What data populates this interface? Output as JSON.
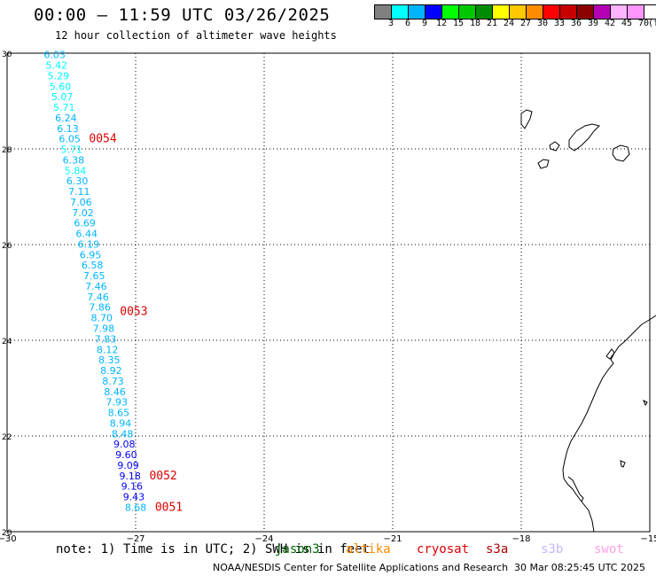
{
  "header": {
    "title": "00:00 – 11:59 UTC 03/26/2025",
    "subtitle": "12 hour collection of altimeter wave heights"
  },
  "colorbar": {
    "unit": "(ft)",
    "colors": [
      "#808080",
      "#00ffff",
      "#00b4ff",
      "#0000ff",
      "#00ff00",
      "#00c800",
      "#008c00",
      "#ffff00",
      "#ffc800",
      "#ff8c00",
      "#ff0000",
      "#c80000",
      "#8c0000",
      "#b400b4",
      "#ffb4ff",
      "#ff96ff",
      "#ffffff",
      "#000000"
    ],
    "labels": [
      "3",
      "6",
      "9",
      "12",
      "15",
      "18",
      "21",
      "24",
      "27",
      "30",
      "33",
      "36",
      "39",
      "42",
      "45",
      "70"
    ]
  },
  "map": {
    "lon_ticks": [
      "−30",
      "−27",
      "−24",
      "−21",
      "−18",
      "−15"
    ],
    "lat_ticks": [
      "30",
      "28",
      "26",
      "24",
      "22",
      "20"
    ],
    "track": [
      {
        "lat": 29.97,
        "value": "6.03"
      },
      {
        "lat": 29.75,
        "value": "5.42"
      },
      {
        "lat": 29.53,
        "value": "5.29"
      },
      {
        "lat": 29.31,
        "value": "5.60"
      },
      {
        "lat": 29.09,
        "value": "5.07"
      },
      {
        "lat": 28.87,
        "value": "5.71"
      },
      {
        "lat": 28.65,
        "value": "6.24"
      },
      {
        "lat": 28.43,
        "value": "6.13"
      },
      {
        "lat": 28.21,
        "value": "6.05"
      },
      {
        "lat": 27.99,
        "value": "5.71"
      },
      {
        "lat": 27.77,
        "value": "6.38"
      },
      {
        "lat": 27.55,
        "value": "5.84"
      },
      {
        "lat": 27.33,
        "value": "6.30"
      },
      {
        "lat": 27.11,
        "value": "7.11"
      },
      {
        "lat": 26.89,
        "value": "7.06"
      },
      {
        "lat": 26.67,
        "value": "7.02"
      },
      {
        "lat": 26.45,
        "value": "6.69"
      },
      {
        "lat": 26.23,
        "value": "6.44"
      },
      {
        "lat": 26.01,
        "value": "6.19"
      },
      {
        "lat": 25.79,
        "value": "6.95"
      },
      {
        "lat": 25.57,
        "value": "6.58"
      },
      {
        "lat": 25.35,
        "value": "7.65"
      },
      {
        "lat": 25.13,
        "value": "7.46"
      },
      {
        "lat": 24.91,
        "value": "7.46"
      },
      {
        "lat": 24.69,
        "value": "7.86"
      },
      {
        "lat": 24.47,
        "value": "8.70"
      },
      {
        "lat": 24.25,
        "value": "7.98"
      },
      {
        "lat": 24.03,
        "value": "7.83"
      },
      {
        "lat": 23.81,
        "value": "8.12"
      },
      {
        "lat": 23.59,
        "value": "8.35"
      },
      {
        "lat": 23.37,
        "value": "8.92"
      },
      {
        "lat": 23.15,
        "value": "8.73"
      },
      {
        "lat": 22.93,
        "value": "8.46"
      },
      {
        "lat": 22.71,
        "value": "7.93"
      },
      {
        "lat": 22.49,
        "value": "8.65"
      },
      {
        "lat": 22.27,
        "value": "8.94"
      },
      {
        "lat": 22.05,
        "value": "8.48"
      },
      {
        "lat": 21.83,
        "value": "9.08"
      },
      {
        "lat": 21.61,
        "value": "9.60"
      },
      {
        "lat": 21.39,
        "value": "9.09"
      },
      {
        "lat": 21.17,
        "value": "9.18"
      },
      {
        "lat": 20.95,
        "value": "9.16"
      },
      {
        "lat": 20.73,
        "value": "9.43"
      },
      {
        "lat": 20.51,
        "value": "8.68"
      }
    ],
    "time_labels": [
      {
        "lat": 28.21,
        "text": "0054"
      },
      {
        "lat": 24.6,
        "text": "0053"
      },
      {
        "lat": 21.17,
        "text": "0052"
      },
      {
        "lat": 20.51,
        "text": "0051"
      }
    ]
  },
  "legend": {
    "note": "note: 1) Time is in UTC; 2) SWH is in feet",
    "satellites": [
      {
        "name": "jason3",
        "color": "#006400"
      },
      {
        "name": "altika",
        "color": "#ff8c00"
      },
      {
        "name": "cryosat",
        "color": "#dd0000"
      },
      {
        "name": "s3a",
        "color": "#aa0000"
      },
      {
        "name": "s3b",
        "color": "#c8b4ff"
      },
      {
        "name": "swot",
        "color": "#ffa0e6"
      }
    ]
  },
  "footer": {
    "credit": "NOAA/NESDIS Center for Satellite Applications and Research",
    "timestamp": "30 Mar 08:25:45 UTC 2025"
  }
}
